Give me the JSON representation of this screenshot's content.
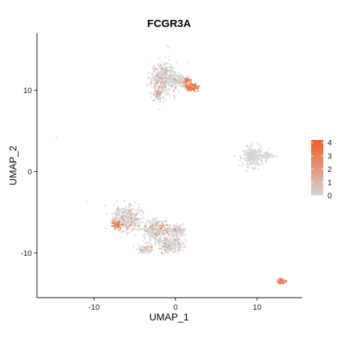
{
  "chart_data": {
    "type": "scatter",
    "title": "FCGR3A",
    "xlabel": "UMAP_1",
    "ylabel": "UMAP_2",
    "xlim": [
      -17,
      15.5
    ],
    "ylim": [
      -15.5,
      17
    ],
    "x_ticks": [
      -10,
      0,
      10
    ],
    "y_ticks": [
      -10,
      0,
      10
    ],
    "grid": false,
    "color_scale": {
      "low": "#d3d3d3",
      "high": "#f15a22",
      "min": 0,
      "max": 4.2,
      "ticks": [
        0,
        1,
        2,
        3,
        4
      ]
    },
    "legend_position": "right",
    "clusters": [
      {
        "label": "top",
        "expression": "mixed",
        "regions": [
          {
            "cx": -1.5,
            "cy": 11.5,
            "sx": 1.3,
            "sy": 1.6,
            "n": 420
          },
          {
            "cx": -2.2,
            "cy": 9.5,
            "sx": 0.6,
            "sy": 0.8,
            "n": 90
          },
          {
            "cx": 0.4,
            "cy": 11.2,
            "sx": 0.9,
            "sy": 0.6,
            "n": 120
          },
          {
            "cx": 2.0,
            "cy": 10.4,
            "sx": 0.6,
            "sy": 0.35,
            "n": 160,
            "high": true
          },
          {
            "cx": 1.5,
            "cy": 11.2,
            "sx": 0.4,
            "sy": 0.3,
            "n": 40,
            "high": true
          }
        ]
      },
      {
        "label": "right",
        "expression": "low",
        "regions": [
          {
            "cx": 9.5,
            "cy": 1.8,
            "sx": 1.0,
            "sy": 1.0,
            "n": 260
          },
          {
            "cx": 11.3,
            "cy": 2.0,
            "sx": 0.6,
            "sy": 0.5,
            "n": 50
          }
        ]
      },
      {
        "label": "bottom",
        "expression": "mixed",
        "regions": [
          {
            "cx": -5.8,
            "cy": -5.8,
            "sx": 1.4,
            "sy": 1.3,
            "n": 380
          },
          {
            "cx": -2.3,
            "cy": -7.2,
            "sx": 1.4,
            "sy": 1.0,
            "n": 330
          },
          {
            "cx": -0.6,
            "cy": -9.0,
            "sx": 1.3,
            "sy": 0.8,
            "n": 260
          },
          {
            "cx": 0.2,
            "cy": -7.3,
            "sx": 0.9,
            "sy": 0.6,
            "n": 140
          },
          {
            "cx": -3.8,
            "cy": -9.5,
            "sx": 0.8,
            "sy": 0.5,
            "n": 80
          },
          {
            "cx": -7.2,
            "cy": -6.5,
            "sx": 0.5,
            "sy": 0.6,
            "n": 60,
            "high": true
          }
        ]
      },
      {
        "label": "small-bottom-right",
        "expression": "high",
        "regions": [
          {
            "cx": 13.0,
            "cy": -13.5,
            "sx": 0.35,
            "sy": 0.22,
            "n": 70,
            "high": true
          }
        ]
      },
      {
        "label": "outliers",
        "expression": "low",
        "points": [
          [
            -14.6,
            4.2
          ],
          [
            -10.9,
            -3.7
          ],
          [
            -8.5,
            -5.2
          ],
          [
            -1.0,
            15.5
          ],
          [
            -0.8,
            15.3
          ]
        ]
      }
    ]
  }
}
